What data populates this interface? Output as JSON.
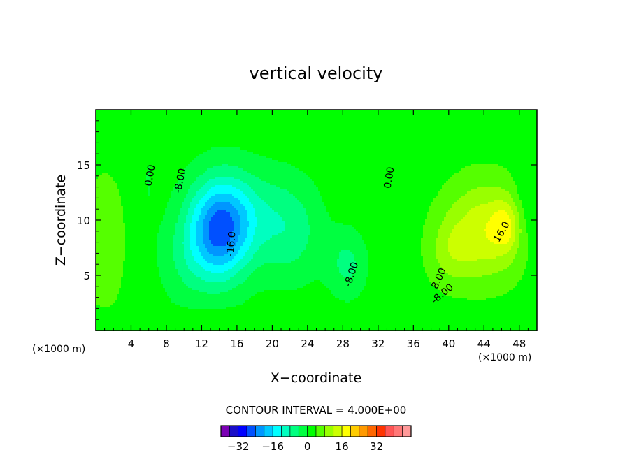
{
  "chart_data": {
    "type": "heatmap",
    "title": "vertical velocity",
    "xlabel": "X−coordinate",
    "ylabel": "Z−coordinate",
    "x_unit": "(×1000 m)",
    "xlim": [
      0,
      50
    ],
    "ylim": [
      0,
      20
    ],
    "x_ticks": [
      4,
      8,
      12,
      16,
      20,
      24,
      28,
      32,
      36,
      40,
      44,
      48
    ],
    "y_ticks": [
      5,
      10,
      15
    ],
    "contour_interval": "CONTOUR INTERVAL = 4.000E+00",
    "contour_labels": [
      {
        "text": "0.00",
        "x": 6.5,
        "y": 14,
        "angle": -80
      },
      {
        "text": "-8.00",
        "x": 9.9,
        "y": 13.5,
        "angle": -78
      },
      {
        "text": "-16.0",
        "x": 15.7,
        "y": 7.8,
        "angle": -85
      },
      {
        "text": "0.00",
        "x": 33.6,
        "y": 13.8,
        "angle": -80
      },
      {
        "text": "-8.00",
        "x": 29.3,
        "y": 5,
        "angle": -72
      },
      {
        "text": "8.00",
        "x": 39.2,
        "y": 4.6,
        "angle": -65
      },
      {
        "text": "-8.00",
        "x": 39.5,
        "y": 3.1,
        "angle": -40
      },
      {
        "text": "16.0",
        "x": 46.3,
        "y": 8.8,
        "angle": -60
      }
    ],
    "features": [
      {
        "x": 14,
        "y": 9,
        "sx": 3.6,
        "sy": 4.5,
        "a": -26
      },
      {
        "x": 17,
        "y": 11,
        "sx": 4.5,
        "sy": 4,
        "a": -6
      },
      {
        "x": 22,
        "y": 9,
        "sx": 3.6,
        "sy": 4.5,
        "a": -8
      },
      {
        "x": 28.5,
        "y": 6,
        "sx": 2.2,
        "sy": 3,
        "a": -7
      },
      {
        "x": 10,
        "y": 6,
        "sx": 3,
        "sy": 4,
        "a": -4
      },
      {
        "x": 44,
        "y": 9,
        "sx": 4.5,
        "sy": 4.5,
        "a": 13
      },
      {
        "x": 46.5,
        "y": 9.5,
        "sx": 1.6,
        "sy": 2.3,
        "a": 8
      },
      {
        "x": 40,
        "y": 7,
        "sx": 2.5,
        "sy": 3,
        "a": 5
      },
      {
        "x": 1,
        "y": 8,
        "sx": 2.2,
        "sy": 6,
        "a": 6
      },
      {
        "x": 6,
        "y": 14,
        "sx": 1.2,
        "sy": 6,
        "a": -2
      },
      {
        "x": 34,
        "y": 12,
        "sx": 1.5,
        "sy": 7,
        "a": -2
      },
      {
        "x": 49,
        "y": 11,
        "sx": 1.5,
        "sy": 4,
        "a": -4
      }
    ],
    "colorbar": {
      "tick_labels": [
        "−32",
        "−16",
        "0",
        "16",
        "32"
      ],
      "tick_values": [
        -32,
        -16,
        0,
        16,
        32
      ],
      "colors": [
        "#7b00b4",
        "#1a0ec8",
        "#0000ff",
        "#0050ff",
        "#0096ff",
        "#00c8ff",
        "#00ffff",
        "#00ffc0",
        "#00ff80",
        "#00ff40",
        "#00ff00",
        "#55ff00",
        "#99ff00",
        "#ccff00",
        "#ffff00",
        "#ffcc00",
        "#ff9900",
        "#ff6600",
        "#ff3300",
        "#ff5555",
        "#ff7777",
        "#ff9999"
      ],
      "min": -40,
      "max": 48
    }
  }
}
